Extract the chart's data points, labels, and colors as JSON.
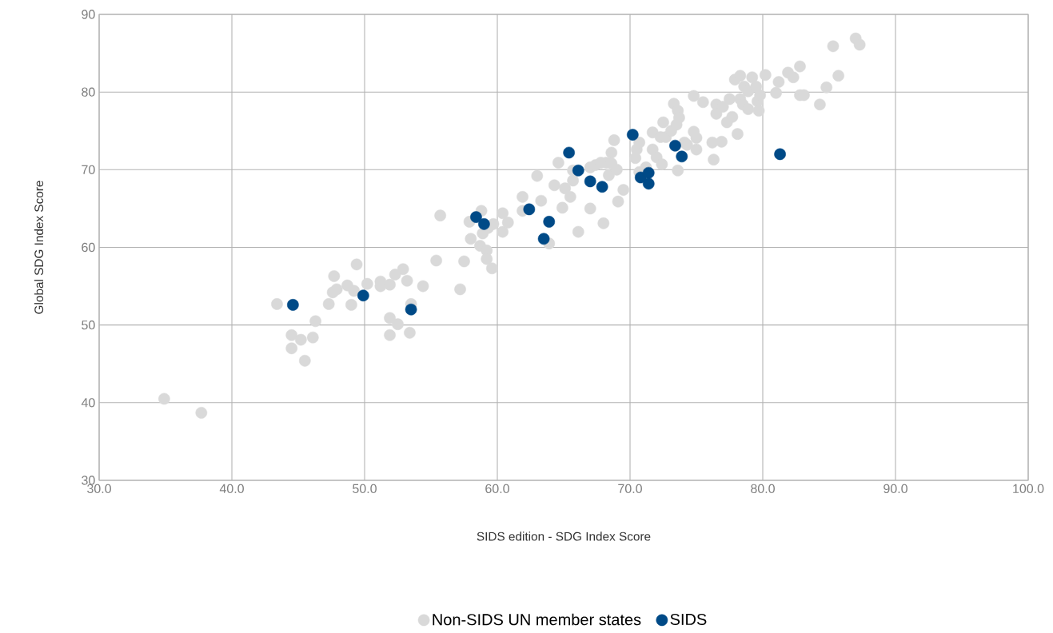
{
  "chart_data": {
    "type": "scatter",
    "xlabel": "SIDS edition - SDG Index Score",
    "ylabel": "Global SDG Index Score",
    "xlim": [
      30,
      100
    ],
    "ylim": [
      30,
      90
    ],
    "xticks": [
      {
        "value": 30,
        "label": "30.0"
      },
      {
        "value": 40,
        "label": "40.0"
      },
      {
        "value": 50,
        "label": "50.0"
      },
      {
        "value": 60,
        "label": "60.0"
      },
      {
        "value": 70,
        "label": "70.0"
      },
      {
        "value": 80,
        "label": "80.0"
      },
      {
        "value": 90,
        "label": "90.0"
      },
      {
        "value": 100,
        "label": "100.0"
      }
    ],
    "yticks": [
      30,
      40,
      50,
      60,
      70,
      80,
      90
    ],
    "grid": true,
    "legend": "bottom",
    "marker": "circle",
    "series": [
      {
        "name": "Non-SIDS UN member states",
        "color": "#d9d9d9",
        "x": [
          34.9,
          37.7,
          43.4,
          44.5,
          44.5,
          45.2,
          45.5,
          46.3,
          46.1,
          47.3,
          47.7,
          47.6,
          47.9,
          48.7,
          49.0,
          49.2,
          49.4,
          50.2,
          51.2,
          51.2,
          51.9,
          51.9,
          51.9,
          52.5,
          52.3,
          52.9,
          53.2,
          53.5,
          53.4,
          54.4,
          55.4,
          55.7,
          57.2,
          57.5,
          57.9,
          58.0,
          58.8,
          58.7,
          58.9,
          59.2,
          59.2,
          59.3,
          59.6,
          59.7,
          60.4,
          60.4,
          60.8,
          61.9,
          61.9,
          63.0,
          63.3,
          63.9,
          64.3,
          64.6,
          64.9,
          65.1,
          65.5,
          65.7,
          65.7,
          66.1,
          67.0,
          67.0,
          67.4,
          67.8,
          68.0,
          68.2,
          68.4,
          68.6,
          68.8,
          68.6,
          69.0,
          69.1,
          69.5,
          70.4,
          70.5,
          70.7,
          70.7,
          71.2,
          71.7,
          71.7,
          72.0,
          72.3,
          72.4,
          72.5,
          72.7,
          73.1,
          73.3,
          73.5,
          73.6,
          73.7,
          73.6,
          74.1,
          74.3,
          74.8,
          74.8,
          75.0,
          75.0,
          75.5,
          76.2,
          76.3,
          76.5,
          76.5,
          77.0,
          76.9,
          77.3,
          77.5,
          77.7,
          77.9,
          78.1,
          78.3,
          78.3,
          78.5,
          78.6,
          78.9,
          78.9,
          79.2,
          79.5,
          79.6,
          79.7,
          79.8,
          80.2,
          81.0,
          81.2,
          81.9,
          82.3,
          82.8,
          82.8,
          83.1,
          84.3,
          84.8,
          85.3,
          85.7,
          87.0,
          87.3
        ],
        "values": [
          40.5,
          38.7,
          52.7,
          48.7,
          47.0,
          48.1,
          45.4,
          50.5,
          48.4,
          52.7,
          56.3,
          54.2,
          54.6,
          55.1,
          52.6,
          54.4,
          57.8,
          55.3,
          55.6,
          55.0,
          55.2,
          50.9,
          48.7,
          50.1,
          56.5,
          57.2,
          55.7,
          52.7,
          49.0,
          55.0,
          58.3,
          64.1,
          54.6,
          58.2,
          63.3,
          61.1,
          64.7,
          60.2,
          61.8,
          59.6,
          58.5,
          62.5,
          57.3,
          63.0,
          62.0,
          64.4,
          63.2,
          66.5,
          64.7,
          69.2,
          66.0,
          60.5,
          68.0,
          70.9,
          65.1,
          67.6,
          66.5,
          68.6,
          69.9,
          62.0,
          70.3,
          65.0,
          70.6,
          70.9,
          63.1,
          70.9,
          69.3,
          72.2,
          73.8,
          70.8,
          70.0,
          65.9,
          67.4,
          71.5,
          72.6,
          73.5,
          69.7,
          70.3,
          74.8,
          72.6,
          71.6,
          74.2,
          70.7,
          76.1,
          74.2,
          75.0,
          78.5,
          75.8,
          77.6,
          76.7,
          69.9,
          73.5,
          73.2,
          79.5,
          74.9,
          74.1,
          72.6,
          78.7,
          73.5,
          71.3,
          78.4,
          77.2,
          78.1,
          73.6,
          76.1,
          79.1,
          76.8,
          81.6,
          74.6,
          82.1,
          79.1,
          78.4,
          80.7,
          77.8,
          80.1,
          81.9,
          80.7,
          78.8,
          77.6,
          79.6,
          82.2,
          79.9,
          81.3,
          82.5,
          81.9,
          79.6,
          83.3,
          79.6,
          78.4,
          80.6,
          85.9,
          82.1,
          86.9,
          86.1
        ]
      },
      {
        "name": "SIDS",
        "color": "#004a87",
        "x": [
          44.6,
          49.9,
          53.5,
          58.4,
          59.0,
          62.4,
          63.9,
          63.5,
          65.4,
          66.1,
          67.0,
          67.9,
          70.2,
          70.8,
          71.4,
          71.4,
          73.4,
          73.9,
          81.3
        ],
        "values": [
          52.6,
          53.8,
          52.0,
          63.9,
          63.0,
          64.9,
          63.3,
          61.1,
          72.2,
          69.9,
          68.5,
          67.8,
          74.5,
          69.0,
          69.6,
          68.2,
          73.1,
          71.7,
          72.0
        ]
      }
    ]
  }
}
